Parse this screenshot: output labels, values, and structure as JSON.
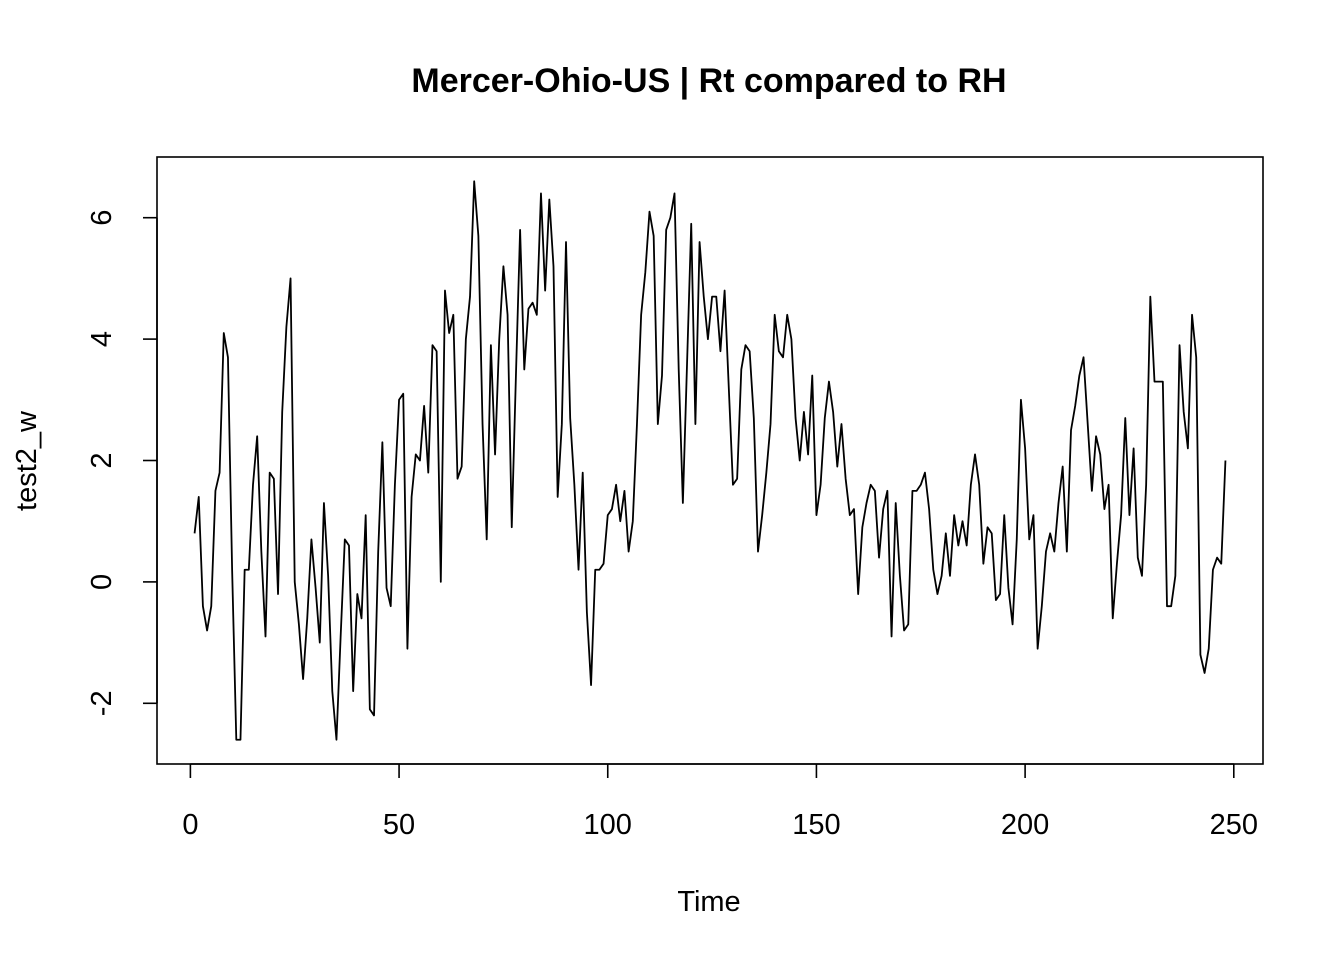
{
  "chart_data": {
    "type": "line",
    "title": "Mercer-Ohio-US | Rt compared to RH",
    "xlabel": "Time",
    "ylabel": "test2_w",
    "xlim": [
      -8,
      257
    ],
    "ylim": [
      -3,
      7
    ],
    "x_ticks": [
      0,
      50,
      100,
      150,
      200,
      250
    ],
    "x_tick_labels": [
      "0",
      "50",
      "100",
      "150",
      "200",
      "250"
    ],
    "y_ticks": [
      -2,
      0,
      2,
      4,
      6
    ],
    "y_tick_labels": [
      "-2",
      "0",
      "2",
      "4",
      "6"
    ],
    "grid": false,
    "series": [
      {
        "x_start": 1,
        "x_step": 1,
        "values": [
          0.8,
          1.4,
          -0.4,
          -0.8,
          -0.4,
          1.5,
          1.8,
          4.1,
          3.7,
          0.2,
          -2.6,
          -2.6,
          0.2,
          0.2,
          1.6,
          2.4,
          0.5,
          -0.9,
          1.8,
          1.7,
          -0.2,
          2.8,
          4.2,
          5.0,
          0.0,
          -0.7,
          -1.6,
          -0.6,
          0.7,
          -0.1,
          -1.0,
          1.3,
          0.1,
          -1.8,
          -2.6,
          -0.9,
          0.7,
          0.6,
          -1.8,
          -0.2,
          -0.6,
          1.1,
          -2.1,
          -2.2,
          0.5,
          2.3,
          -0.1,
          -0.4,
          1.6,
          3.0,
          3.1,
          -1.1,
          1.4,
          2.1,
          2.0,
          2.9,
          1.8,
          3.9,
          3.8,
          0.0,
          4.8,
          4.1,
          4.4,
          1.7,
          1.9,
          4.0,
          4.7,
          6.6,
          5.7,
          2.6,
          0.7,
          3.9,
          2.1,
          4.0,
          5.2,
          4.4,
          0.9,
          3.4,
          5.8,
          3.5,
          4.5,
          4.6,
          4.4,
          6.4,
          4.8,
          6.3,
          5.2,
          1.4,
          2.6,
          5.6,
          2.7,
          1.6,
          0.2,
          1.8,
          -0.5,
          -1.7,
          0.2,
          0.2,
          0.3,
          1.1,
          1.2,
          1.6,
          1.0,
          1.5,
          0.5,
          1.0,
          2.6,
          4.4,
          5.1,
          6.1,
          5.7,
          2.6,
          3.4,
          5.8,
          6.0,
          6.4,
          3.5,
          1.3,
          3.6,
          5.9,
          2.6,
          5.6,
          4.7,
          4.0,
          4.7,
          4.7,
          3.8,
          4.8,
          3.2,
          1.6,
          1.7,
          3.5,
          3.9,
          3.8,
          2.7,
          0.5,
          1.1,
          1.8,
          2.6,
          4.4,
          3.8,
          3.7,
          4.4,
          4.0,
          2.7,
          2.0,
          2.8,
          2.1,
          3.4,
          1.1,
          1.6,
          2.7,
          3.3,
          2.8,
          1.9,
          2.6,
          1.7,
          1.1,
          1.2,
          -0.2,
          0.9,
          1.3,
          1.6,
          1.5,
          0.4,
          1.2,
          1.5,
          -0.9,
          1.3,
          0.1,
          -0.8,
          -0.7,
          1.5,
          1.5,
          1.6,
          1.8,
          1.2,
          0.2,
          -0.2,
          0.1,
          0.8,
          0.1,
          1.1,
          0.6,
          1.0,
          0.6,
          1.6,
          2.1,
          1.6,
          0.3,
          0.9,
          0.8,
          -0.3,
          -0.2,
          1.1,
          -0.1,
          -0.7,
          0.7,
          3.0,
          2.2,
          0.7,
          1.1,
          -1.1,
          -0.4,
          0.5,
          0.8,
          0.5,
          1.3,
          1.9,
          0.5,
          2.5,
          2.9,
          3.4,
          3.7,
          2.6,
          1.5,
          2.4,
          2.1,
          1.2,
          1.6,
          -0.6,
          0.3,
          1.1,
          2.7,
          1.1,
          2.2,
          0.4,
          0.1,
          1.6,
          4.7,
          3.3,
          3.3,
          3.3,
          -0.4,
          -0.4,
          0.1,
          3.9,
          2.8,
          2.2,
          4.4,
          3.7,
          -1.2,
          -1.5,
          -1.1,
          0.2,
          0.4,
          0.3,
          2.0
        ]
      }
    ]
  }
}
